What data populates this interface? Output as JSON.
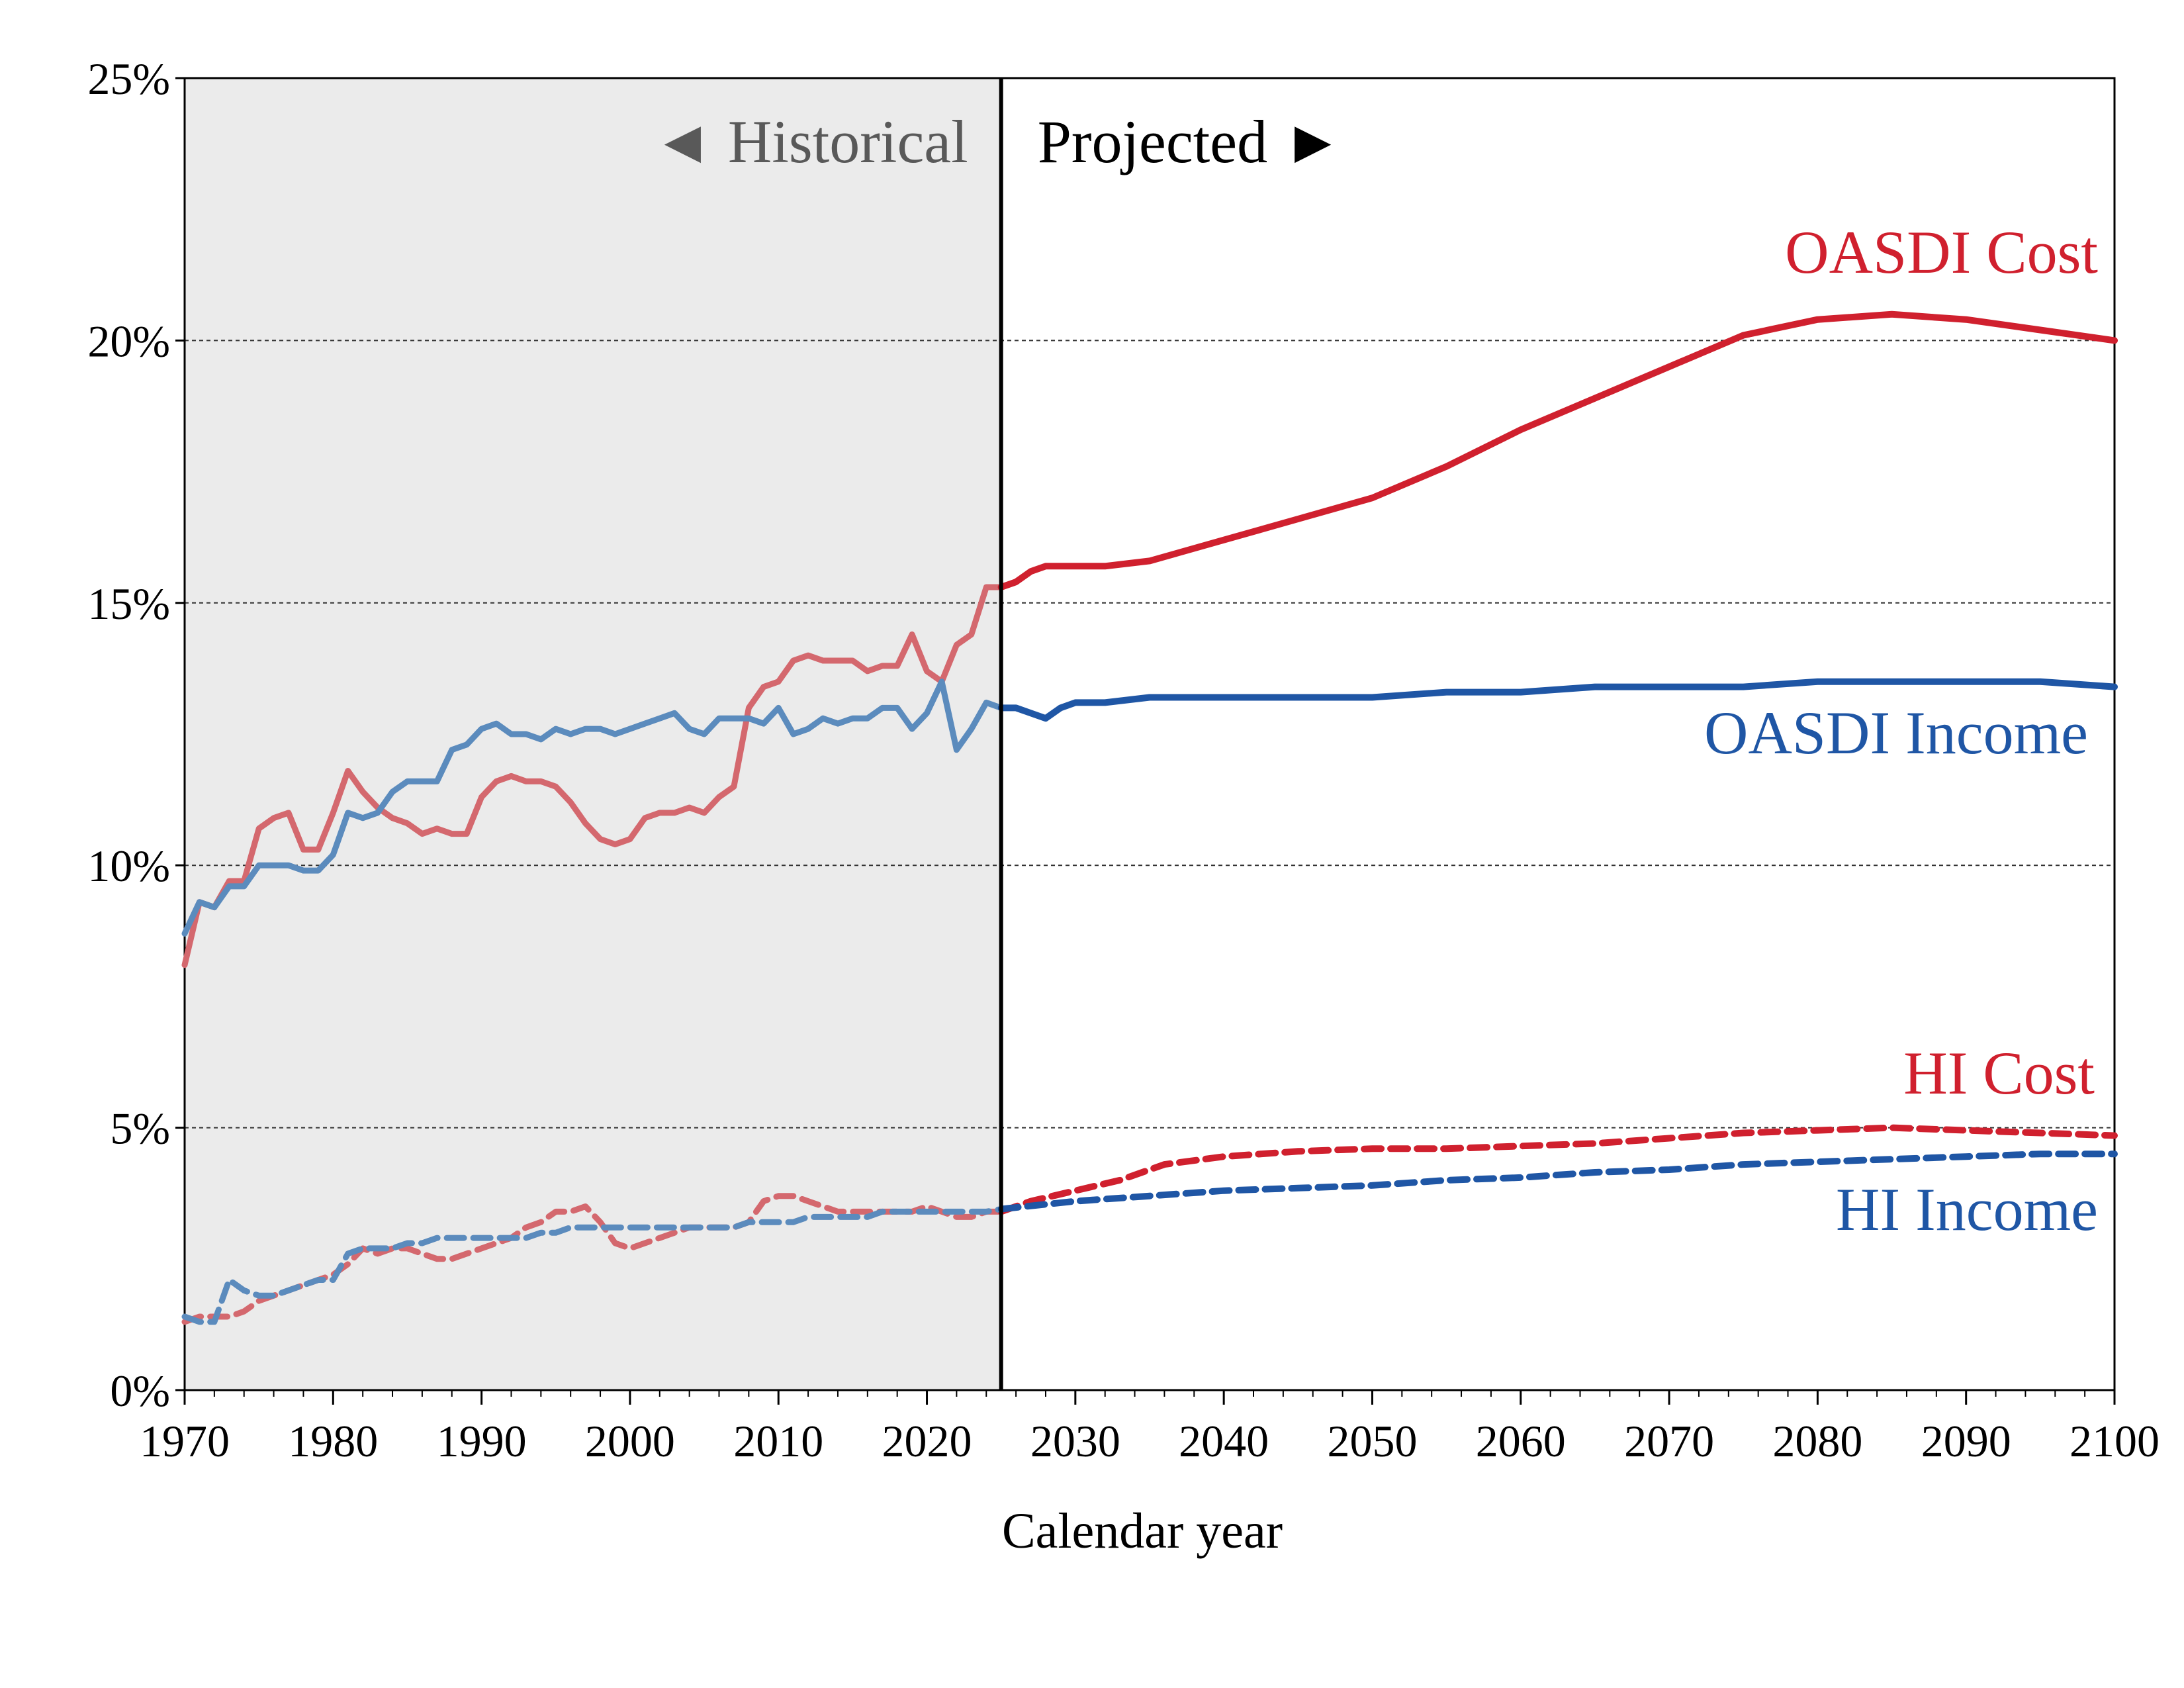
{
  "chart_data": {
    "type": "line",
    "xlabel": "Calendar year",
    "xlim": [
      1970,
      2100
    ],
    "ylim": [
      0,
      25
    ],
    "x_ticks": [
      1970,
      1980,
      1990,
      2000,
      2010,
      2020,
      2030,
      2040,
      2050,
      2060,
      2070,
      2080,
      2090,
      2100
    ],
    "y_ticks": [
      0,
      5,
      10,
      15,
      20,
      25
    ],
    "y_tick_labels": [
      "0%",
      "5%",
      "10%",
      "15%",
      "20%",
      "25%"
    ],
    "gridlines": [
      5,
      10,
      15,
      20
    ],
    "divider_year": 2025,
    "regions": [
      {
        "label": "◄ Historical",
        "from": 1970,
        "to": 2025,
        "shaded": true,
        "color": "#ebebeb"
      },
      {
        "label": "Projected ►",
        "from": 2025,
        "to": 2100,
        "shaded": false
      }
    ],
    "series": [
      {
        "name": "OASDI Cost",
        "color": "#d0202e",
        "historical_color": "#d4686e",
        "style": "solid",
        "x": [
          1970,
          1971,
          1972,
          1973,
          1974,
          1975,
          1976,
          1977,
          1978,
          1979,
          1980,
          1981,
          1982,
          1983,
          1984,
          1985,
          1986,
          1987,
          1988,
          1989,
          1990,
          1991,
          1992,
          1993,
          1994,
          1995,
          1996,
          1997,
          1998,
          1999,
          2000,
          2001,
          2002,
          2003,
          2004,
          2005,
          2006,
          2007,
          2008,
          2009,
          2010,
          2011,
          2012,
          2013,
          2014,
          2015,
          2016,
          2017,
          2018,
          2019,
          2020,
          2021,
          2022,
          2023,
          2024,
          2025,
          2026,
          2027,
          2028,
          2029,
          2030,
          2032,
          2035,
          2040,
          2045,
          2050,
          2055,
          2060,
          2065,
          2070,
          2075,
          2080,
          2085,
          2090,
          2095,
          2100
        ],
        "y": [
          8.1,
          9.3,
          9.2,
          9.7,
          9.7,
          10.7,
          10.9,
          11.0,
          10.3,
          10.3,
          11.0,
          11.8,
          11.4,
          11.1,
          10.9,
          10.8,
          10.6,
          10.7,
          10.6,
          10.6,
          11.3,
          11.6,
          11.7,
          11.6,
          11.6,
          11.5,
          11.2,
          10.8,
          10.5,
          10.4,
          10.5,
          10.9,
          11.0,
          11.0,
          11.1,
          11.0,
          11.3,
          11.5,
          13.0,
          13.4,
          13.5,
          13.9,
          14.0,
          13.9,
          13.9,
          13.9,
          13.7,
          13.8,
          13.8,
          14.4,
          13.7,
          13.5,
          14.2,
          14.4,
          15.3,
          15.3,
          15.4,
          15.6,
          15.7,
          15.7,
          15.7,
          15.7,
          15.8,
          16.2,
          16.6,
          17.0,
          17.6,
          18.3,
          18.9,
          19.5,
          20.1,
          20.4,
          20.5,
          20.4,
          20.2,
          20.0
        ]
      },
      {
        "name": "OASDI Income",
        "color": "#1f56a5",
        "historical_color": "#5b8bbd",
        "style": "solid",
        "x": [
          1970,
          1971,
          1972,
          1973,
          1974,
          1975,
          1976,
          1977,
          1978,
          1979,
          1980,
          1981,
          1982,
          1983,
          1984,
          1985,
          1986,
          1987,
          1988,
          1989,
          1990,
          1991,
          1992,
          1993,
          1994,
          1995,
          1996,
          1997,
          1998,
          1999,
          2000,
          2001,
          2002,
          2003,
          2004,
          2005,
          2006,
          2007,
          2008,
          2009,
          2010,
          2011,
          2012,
          2013,
          2014,
          2015,
          2016,
          2017,
          2018,
          2019,
          2020,
          2021,
          2022,
          2023,
          2024,
          2025,
          2026,
          2027,
          2028,
          2029,
          2030,
          2032,
          2035,
          2040,
          2045,
          2050,
          2055,
          2060,
          2065,
          2070,
          2075,
          2080,
          2085,
          2090,
          2095,
          2100
        ],
        "y": [
          8.7,
          9.3,
          9.2,
          9.6,
          9.6,
          10.0,
          10.0,
          10.0,
          9.9,
          9.9,
          10.2,
          11.0,
          10.9,
          11.0,
          11.4,
          11.6,
          11.6,
          11.6,
          12.2,
          12.3,
          12.6,
          12.7,
          12.5,
          12.5,
          12.4,
          12.6,
          12.5,
          12.6,
          12.6,
          12.5,
          12.6,
          12.7,
          12.8,
          12.9,
          12.6,
          12.5,
          12.8,
          12.8,
          12.8,
          12.7,
          13.0,
          12.5,
          12.6,
          12.8,
          12.7,
          12.8,
          12.8,
          13.0,
          13.0,
          12.6,
          12.9,
          13.5,
          12.2,
          12.6,
          13.1,
          13.0,
          13.0,
          12.9,
          12.8,
          13.0,
          13.1,
          13.1,
          13.2,
          13.2,
          13.2,
          13.2,
          13.3,
          13.3,
          13.4,
          13.4,
          13.4,
          13.5,
          13.5,
          13.5,
          13.5,
          13.4
        ]
      },
      {
        "name": "HI Cost",
        "color": "#d0202e",
        "historical_color": "#d4686e",
        "style": "dashed",
        "x": [
          1970,
          1971,
          1972,
          1973,
          1974,
          1975,
          1976,
          1977,
          1978,
          1979,
          1980,
          1981,
          1982,
          1983,
          1984,
          1985,
          1986,
          1987,
          1988,
          1989,
          1990,
          1991,
          1992,
          1993,
          1994,
          1995,
          1996,
          1997,
          1998,
          1999,
          2000,
          2001,
          2002,
          2003,
          2004,
          2005,
          2006,
          2007,
          2008,
          2009,
          2010,
          2011,
          2012,
          2013,
          2014,
          2015,
          2016,
          2017,
          2018,
          2019,
          2020,
          2021,
          2022,
          2023,
          2024,
          2025,
          2027,
          2030,
          2033,
          2036,
          2040,
          2045,
          2050,
          2055,
          2060,
          2065,
          2070,
          2075,
          2080,
          2085,
          2090,
          2095,
          2100
        ],
        "y": [
          1.3,
          1.4,
          1.4,
          1.4,
          1.5,
          1.7,
          1.8,
          1.9,
          2.0,
          2.1,
          2.2,
          2.4,
          2.7,
          2.6,
          2.7,
          2.7,
          2.6,
          2.5,
          2.5,
          2.6,
          2.7,
          2.8,
          2.9,
          3.1,
          3.2,
          3.4,
          3.4,
          3.5,
          3.2,
          2.8,
          2.7,
          2.8,
          2.9,
          3.0,
          3.1,
          3.1,
          3.1,
          3.1,
          3.2,
          3.6,
          3.7,
          3.7,
          3.6,
          3.5,
          3.4,
          3.4,
          3.4,
          3.4,
          3.4,
          3.4,
          3.5,
          3.4,
          3.3,
          3.3,
          3.4,
          3.4,
          3.6,
          3.8,
          4.0,
          4.3,
          4.45,
          4.55,
          4.6,
          4.6,
          4.65,
          4.7,
          4.8,
          4.9,
          4.95,
          5.0,
          4.95,
          4.9,
          4.85
        ]
      },
      {
        "name": "HI Income",
        "color": "#1f56a5",
        "historical_color": "#5b8bbd",
        "style": "dashed",
        "x": [
          1970,
          1971,
          1972,
          1973,
          1974,
          1975,
          1976,
          1977,
          1978,
          1979,
          1980,
          1981,
          1982,
          1983,
          1984,
          1985,
          1986,
          1987,
          1988,
          1989,
          1990,
          1991,
          1992,
          1993,
          1994,
          1995,
          1996,
          1997,
          1998,
          1999,
          2000,
          2001,
          2002,
          2003,
          2004,
          2005,
          2006,
          2007,
          2008,
          2009,
          2010,
          2011,
          2012,
          2013,
          2014,
          2015,
          2016,
          2017,
          2018,
          2019,
          2020,
          2021,
          2022,
          2023,
          2024,
          2025,
          2030,
          2035,
          2040,
          2045,
          2050,
          2055,
          2060,
          2065,
          2070,
          2075,
          2080,
          2085,
          2090,
          2095,
          2100
        ],
        "y": [
          1.4,
          1.3,
          1.3,
          2.1,
          1.9,
          1.8,
          1.8,
          1.9,
          2.0,
          2.1,
          2.1,
          2.6,
          2.7,
          2.7,
          2.7,
          2.8,
          2.8,
          2.9,
          2.9,
          2.9,
          2.9,
          2.9,
          2.9,
          2.9,
          3.0,
          3.0,
          3.1,
          3.1,
          3.1,
          3.1,
          3.1,
          3.1,
          3.1,
          3.1,
          3.1,
          3.1,
          3.1,
          3.1,
          3.2,
          3.2,
          3.2,
          3.2,
          3.3,
          3.3,
          3.3,
          3.3,
          3.3,
          3.4,
          3.4,
          3.4,
          3.4,
          3.4,
          3.4,
          3.4,
          3.4,
          3.45,
          3.6,
          3.7,
          3.8,
          3.85,
          3.9,
          4.0,
          4.05,
          4.15,
          4.2,
          4.3,
          4.35,
          4.4,
          4.45,
          4.5,
          4.5
        ]
      }
    ],
    "annotations": [
      {
        "text": "OASDI Cost",
        "series": "OASDI Cost"
      },
      {
        "text": "OASDI Income",
        "series": "OASDI Income"
      },
      {
        "text": "HI Cost",
        "series": "HI Cost"
      },
      {
        "text": "HI Income",
        "series": "HI Income"
      }
    ]
  }
}
